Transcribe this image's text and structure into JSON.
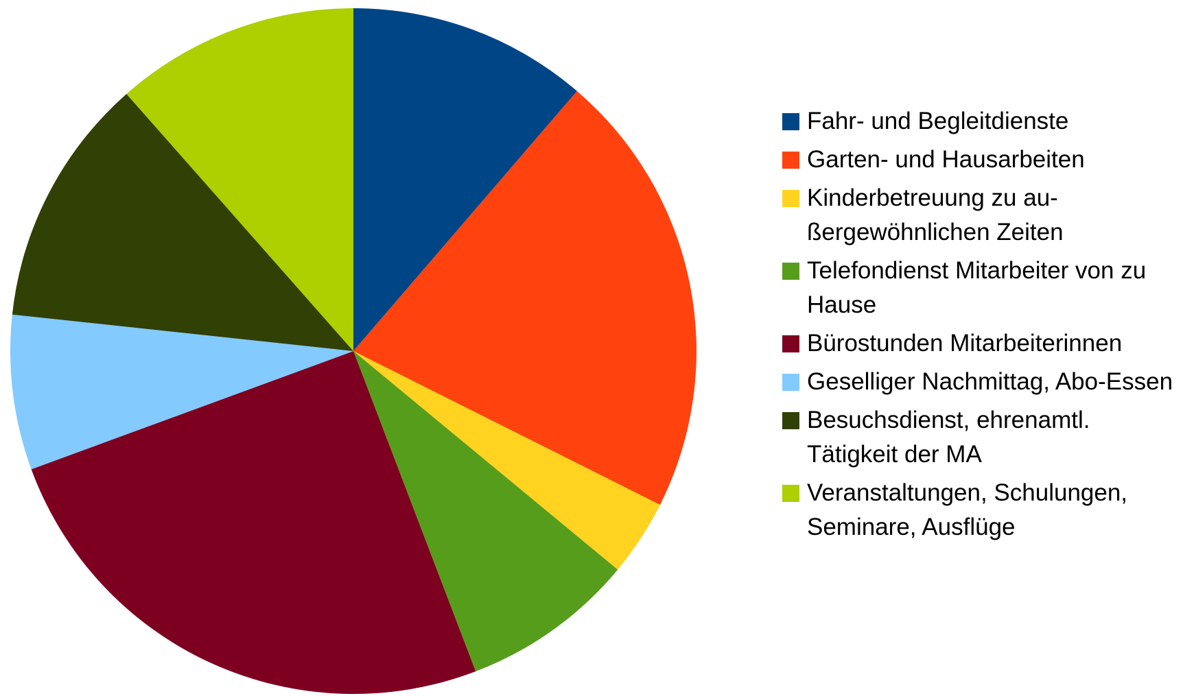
{
  "chart_data": {
    "type": "pie",
    "categories": [
      "Fahr- und Begleitdienste",
      "Garten- und Hausarbeiten",
      "Kinderbetreuung zu au­ßergewöhnlichen Zeiten",
      "Telefondienst Mitarbeiter von zu Hause",
      "Bürostunden Mitarbeite­rinnen",
      "Geselliger Nachmittag, Abo-Essen",
      "Besuchsdienst, ehrenamtl. Tätigkeit der MA",
      "Veranstaltungen, Schulungen, Seminare, Ausflüge"
    ],
    "values": [
      11.3,
      21.1,
      3.6,
      8.2,
      25.2,
      7.3,
      11.8,
      11.5
    ],
    "colors": [
      "#004586",
      "#ff420e",
      "#ffd320",
      "#579d1c",
      "#7e0021",
      "#83caff",
      "#314004",
      "#aecf00"
    ]
  }
}
